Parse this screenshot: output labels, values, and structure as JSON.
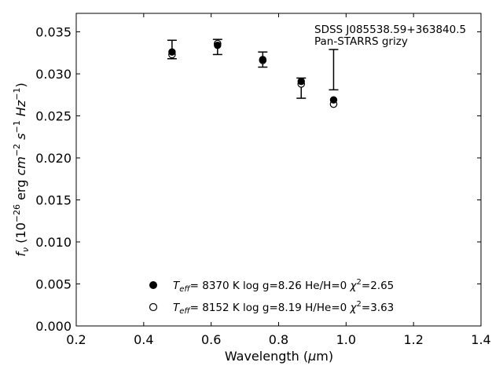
{
  "chart_data": {
    "type": "scatter",
    "xlabel": "Wavelength (μm)",
    "ylabel": "f_ν (10^-26 erg cm^-2 s^-1 Hz^-1)",
    "xlim": [
      0.2,
      1.4
    ],
    "ylim": [
      0.0,
      0.0372
    ],
    "xticks": [
      "0.2",
      "0.4",
      "0.6",
      "0.8",
      "1.0",
      "1.2",
      "1.4"
    ],
    "yticks": [
      "0.000",
      "0.005",
      "0.010",
      "0.015",
      "0.020",
      "0.025",
      "0.030",
      "0.035"
    ],
    "annotation": [
      "SDSS J085538.59+363840.5",
      "Pan-STARRS grizy"
    ],
    "observed": {
      "x": [
        0.484,
        0.619,
        0.753,
        0.867,
        0.963
      ],
      "y": [
        0.0329,
        0.0332,
        0.0317,
        0.0283,
        0.0305
      ],
      "yerr": [
        0.0011,
        0.0009,
        0.0009,
        0.0012,
        0.0024
      ]
    },
    "series": [
      {
        "name": "Teff= 8370 K log g=8.26 He/H=0 χ2=2.65",
        "marker": "filled-circle",
        "legend": {
          "teff": "8370 K",
          "logg": "log g=8.26",
          "comp": "He/H=0",
          "chi2": "=2.65"
        },
        "x": [
          0.484,
          0.619,
          0.753,
          0.867,
          0.963
        ],
        "y": [
          0.0326,
          0.0334,
          0.0317,
          0.0291,
          0.0269
        ]
      },
      {
        "name": "Teff= 8152 K log g=8.19 H/He=0 χ2=3.63",
        "marker": "open-circle",
        "legend": {
          "teff": "8152 K",
          "logg": "log g=8.19",
          "comp": "H/He=0",
          "chi2": "=3.63"
        },
        "x": [
          0.484,
          0.619,
          0.753,
          0.867,
          0.963
        ],
        "y": [
          0.0323,
          0.0336,
          0.0316,
          0.0288,
          0.0264
        ]
      }
    ],
    "legend_placement": "lower-center",
    "grid": false,
    "colors": {
      "marker": "#000000",
      "errorbar": "#000000"
    }
  }
}
